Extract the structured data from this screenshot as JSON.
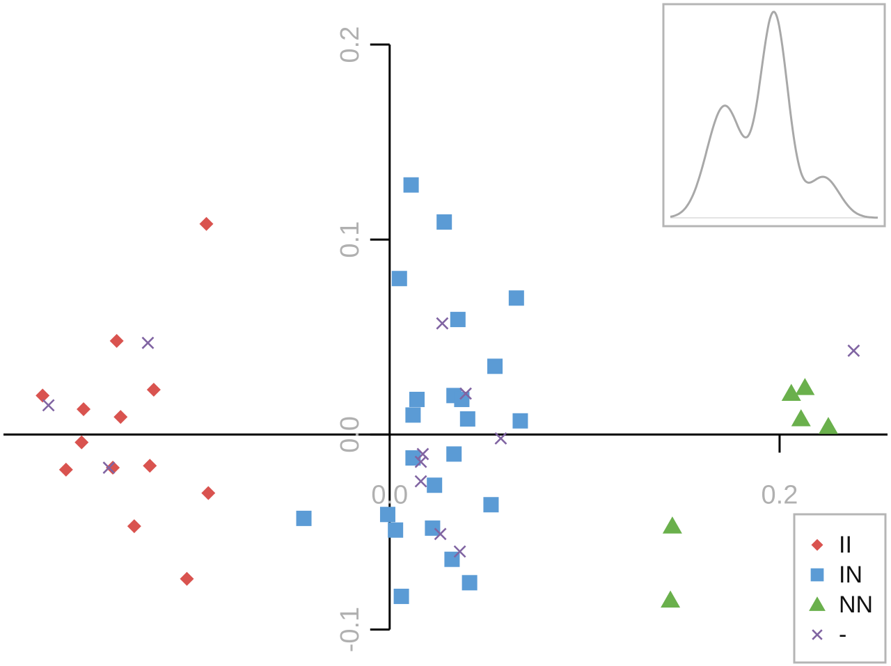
{
  "chart_data": {
    "type": "scatter",
    "title": "",
    "xlabel": "",
    "ylabel": "",
    "xlim": [
      -0.197,
      0.255
    ],
    "ylim": [
      -0.118,
      0.22
    ],
    "x_ticks": [
      {
        "value": 0.0,
        "label": "0.0"
      },
      {
        "value": 0.2,
        "label": "0.2"
      }
    ],
    "y_ticks": [
      {
        "value": -0.1,
        "label": "-0.1"
      },
      {
        "value": 0.0,
        "label": "0.0"
      },
      {
        "value": 0.1,
        "label": "0.1"
      },
      {
        "value": 0.2,
        "label": "0.2"
      }
    ],
    "axes_cross_at_origin": true,
    "grid": false,
    "legend_position": "bottom-right",
    "inset": {
      "type": "density",
      "description_peaks": [
        -0.05,
        0.0,
        0.05
      ],
      "position": "top-right"
    },
    "series": [
      {
        "name": "II",
        "marker": "diamond",
        "color": "#d9534f",
        "points": [
          [
            -0.178,
            0.02
          ],
          [
            -0.157,
            0.013
          ],
          [
            -0.14,
            0.048
          ],
          [
            -0.138,
            0.009
          ],
          [
            -0.121,
            0.023
          ],
          [
            -0.094,
            0.108
          ],
          [
            -0.158,
            -0.004
          ],
          [
            -0.166,
            -0.018
          ],
          [
            -0.142,
            -0.017
          ],
          [
            -0.123,
            -0.016
          ],
          [
            -0.093,
            -0.03
          ],
          [
            -0.131,
            -0.047
          ],
          [
            -0.104,
            -0.074
          ]
        ]
      },
      {
        "name": "IN",
        "marker": "square",
        "color": "#5b9bd5",
        "points": [
          [
            0.011,
            0.128
          ],
          [
            0.028,
            0.109
          ],
          [
            0.005,
            0.08
          ],
          [
            0.035,
            0.059
          ],
          [
            0.065,
            0.07
          ],
          [
            0.054,
            0.035
          ],
          [
            0.014,
            0.018
          ],
          [
            0.033,
            0.02
          ],
          [
            0.037,
            0.018
          ],
          [
            0.012,
            0.01
          ],
          [
            0.04,
            0.008
          ],
          [
            0.067,
            0.007
          ],
          [
            0.012,
            -0.012
          ],
          [
            0.033,
            -0.01
          ],
          [
            0.023,
            -0.026
          ],
          [
            0.052,
            -0.036
          ],
          [
            -0.044,
            -0.043
          ],
          [
            -0.001,
            -0.041
          ],
          [
            0.003,
            -0.049
          ],
          [
            0.022,
            -0.048
          ],
          [
            0.032,
            -0.064
          ],
          [
            0.041,
            -0.076
          ],
          [
            0.006,
            -0.083
          ]
        ]
      },
      {
        "name": "NN",
        "marker": "triangle",
        "color": "#6ab04c",
        "points": [
          [
            0.206,
            0.021
          ],
          [
            0.213,
            0.024
          ],
          [
            0.211,
            0.008
          ],
          [
            0.225,
            0.004
          ],
          [
            0.145,
            -0.047
          ],
          [
            0.144,
            -0.085
          ]
        ]
      },
      {
        "name": "-",
        "marker": "cross",
        "color": "#8064a2",
        "points": [
          [
            -0.175,
            0.015
          ],
          [
            -0.124,
            0.047
          ],
          [
            -0.144,
            -0.017
          ],
          [
            0.027,
            0.057
          ],
          [
            0.039,
            0.021
          ],
          [
            0.238,
            0.043
          ],
          [
            0.057,
            -0.002
          ],
          [
            0.017,
            -0.01
          ],
          [
            0.016,
            -0.014
          ],
          [
            0.016,
            -0.024
          ],
          [
            0.026,
            -0.051
          ],
          [
            0.036,
            -0.06
          ]
        ]
      }
    ]
  }
}
